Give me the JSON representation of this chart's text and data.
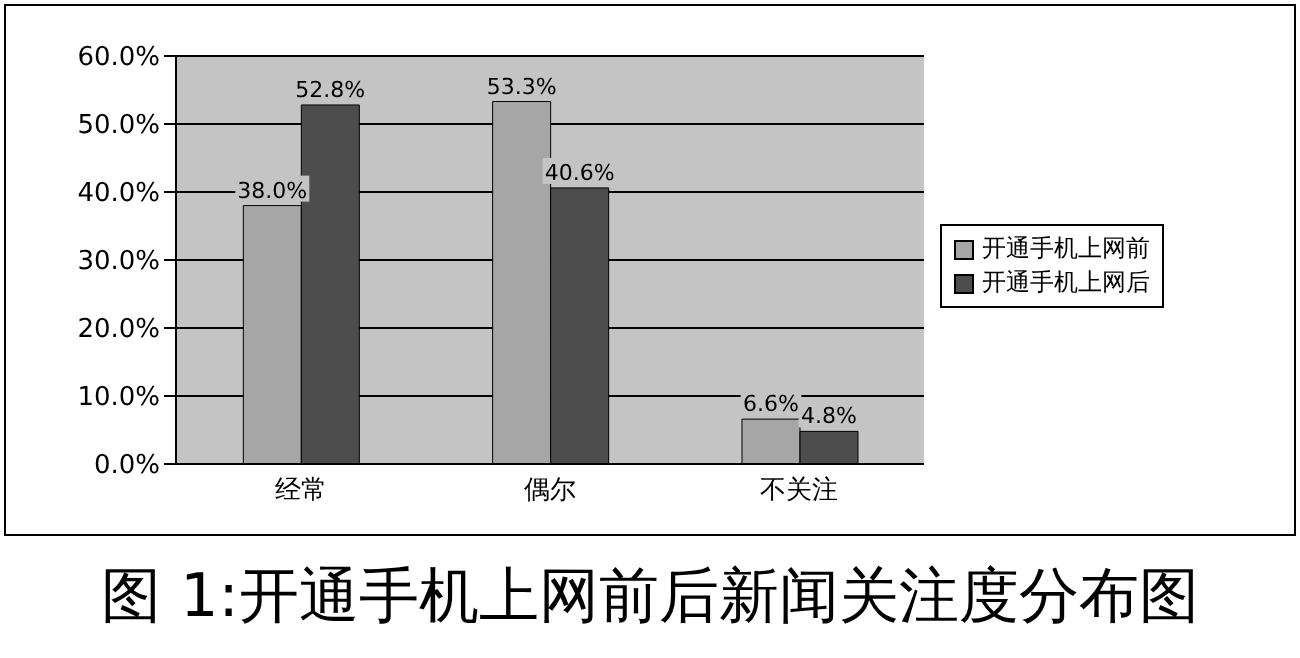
{
  "chart_data": {
    "type": "bar",
    "title": "图 1:开通手机上网前后新闻关注度分布图",
    "categories": [
      "经常",
      "偶尔",
      "不关注"
    ],
    "series": [
      {
        "name": "开通手机上网前",
        "color": "#a6a6a6",
        "values": [
          38.0,
          53.3,
          6.6
        ],
        "value_labels": [
          "38.0%",
          "53.3%",
          "6.6%"
        ]
      },
      {
        "name": "开通手机上网后",
        "color": "#4d4d4d",
        "values": [
          52.8,
          40.6,
          4.8
        ],
        "value_labels": [
          "52.8%",
          "40.6%",
          "4.8%"
        ]
      }
    ],
    "ylim": [
      0,
      60
    ],
    "yticks": [
      {
        "value": 0,
        "label": "0.0%"
      },
      {
        "value": 10,
        "label": "10.0%"
      },
      {
        "value": 20,
        "label": "20.0%"
      },
      {
        "value": 30,
        "label": "30.0%"
      },
      {
        "value": 40,
        "label": "40.0%"
      },
      {
        "value": 50,
        "label": "50.0%"
      },
      {
        "value": 60,
        "label": "60.0%"
      }
    ],
    "grid": "y",
    "legend": "right"
  }
}
